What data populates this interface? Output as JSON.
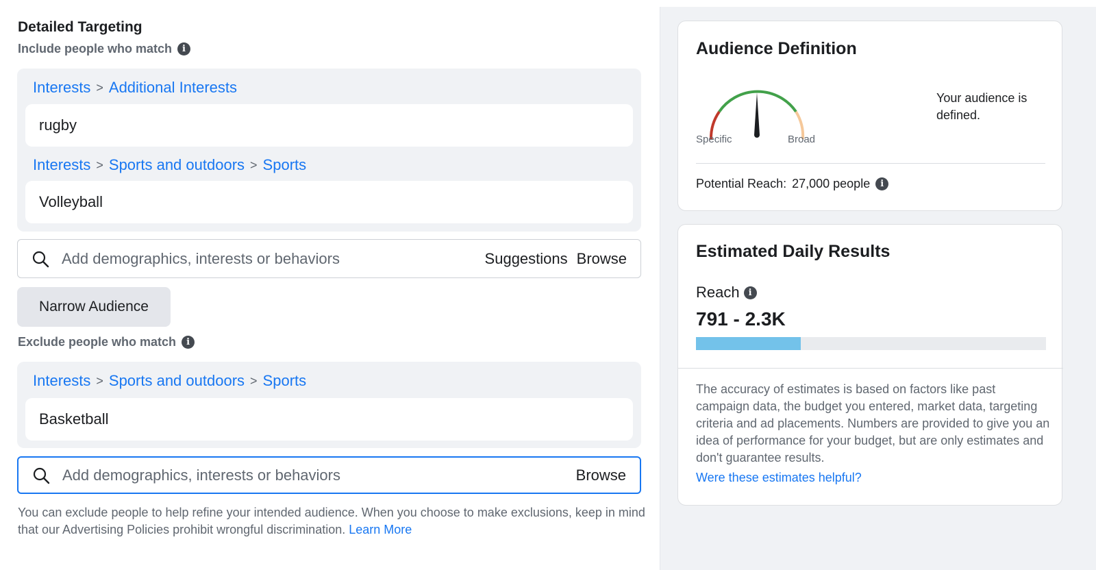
{
  "detailed_targeting": {
    "title": "Detailed Targeting",
    "include_label": "Include people who match",
    "include_groups": [
      {
        "crumbs": [
          "Interests",
          "Additional Interests"
        ],
        "item": "rugby"
      },
      {
        "crumbs": [
          "Interests",
          "Sports and outdoors",
          "Sports"
        ],
        "item": "Volleyball"
      }
    ],
    "crumb_separator": ">",
    "include_search": {
      "placeholder": "Add demographics, interests or behaviors",
      "suggestions_label": "Suggestions",
      "browse_label": "Browse"
    },
    "narrow_button": "Narrow Audience",
    "exclude_label": "Exclude people who match",
    "exclude_groups": [
      {
        "crumbs": [
          "Interests",
          "Sports and outdoors",
          "Sports"
        ],
        "item": "Basketball"
      }
    ],
    "exclude_search": {
      "placeholder": "Add demographics, interests or behaviors",
      "browse_label": "Browse"
    },
    "footnote": "You can exclude people to help refine your intended audience. When you choose to make exclusions, keep in mind that our Advertising Policies prohibit wrongful discrimination.",
    "learn_more": "Learn More"
  },
  "audience_definition": {
    "title": "Audience Definition",
    "gauge_specific": "Specific",
    "gauge_broad": "Broad",
    "status_text": "Your audience is defined.",
    "potential_reach_label": "Potential Reach:",
    "potential_reach_value": "27,000 people"
  },
  "estimated_results": {
    "title": "Estimated Daily Results",
    "reach_label": "Reach",
    "reach_value": "791 - 2.3K",
    "reach_bar_fraction": 0.3,
    "accuracy_text": "The accuracy of estimates is based on factors like past campaign data, the budget you entered, market data, targeting criteria and ad placements. Numbers are provided to give you an idea of performance for your budget, but are only estimates and don't guarantee results.",
    "helpful_link": "Were these estimates helpful?"
  },
  "icons": {
    "info": "info-icon",
    "search": "search-icon",
    "info_glyph": "i"
  },
  "colors": {
    "link": "#1877f2",
    "bar_fill": "#73c2ea",
    "gauge_green": "#42a14a",
    "gauge_red": "#c0392b",
    "gauge_orange": "#f5c89a"
  }
}
